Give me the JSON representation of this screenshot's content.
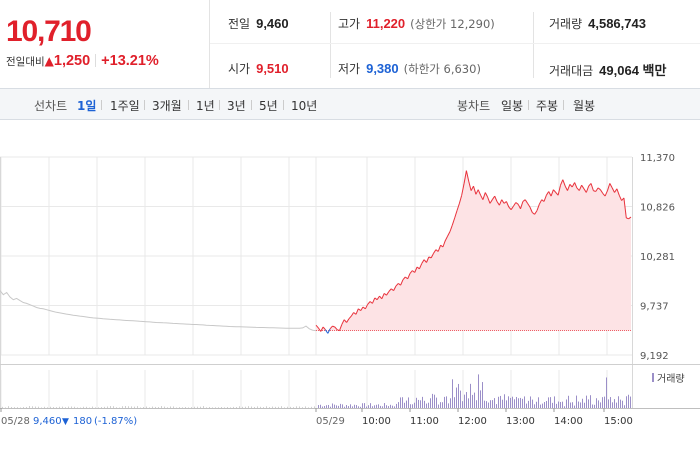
{
  "quote": {
    "price": "10,710",
    "change_label": "전일대비",
    "change_arrow": "▲",
    "change_value": "1,250",
    "change_pct": "+13.21%",
    "prev_close_label": "전일",
    "prev_close": "9,460",
    "open_label": "시가",
    "open": "9,510",
    "high_label": "고가",
    "high": "11,220",
    "upper_limit": "(상한가 12,290)",
    "low_label": "저가",
    "low": "9,380",
    "lower_limit": "(하한가 6,630)",
    "volume_label": "거래량",
    "volume": "4,586,743",
    "amount_label": "거래대금",
    "amount": "49,064 백만"
  },
  "tabs": {
    "line_label": "선차트",
    "line_periods": [
      "1일",
      "1주일",
      "3개월",
      "1년",
      "3년",
      "5년",
      "10년"
    ],
    "active_period": "1일",
    "candle_label": "봉차트",
    "candle_periods": [
      "일봉",
      "주봉",
      "월봉"
    ]
  },
  "chart_data": {
    "type": "line",
    "y_ticks": [
      "11,370",
      "10,826",
      "10,281",
      "9,737",
      "9,192"
    ],
    "ylim": [
      9192,
      11370
    ],
    "base_price": 9460,
    "x_tick_labels": [
      "05/28",
      "05/29",
      "10:00",
      "11:00",
      "12:00",
      "13:00",
      "14:00",
      "15:00"
    ],
    "prev_day_info": {
      "date": "05/28",
      "close": "9,460",
      "arrow": "▼",
      "change": "180",
      "change_pct": "(-1.87%)"
    },
    "volume_legend": "거래량",
    "colors": {
      "up": "#e8323c",
      "down": "#1d62d5",
      "prev_day": "#c8c8c8",
      "fill": "#fde3e5",
      "volume": "#9b8fc8",
      "grid": "#e9e9e9"
    },
    "prev_day_series": [
      [
        0,
        9900
      ],
      [
        1,
        9855
      ],
      [
        2,
        9880
      ],
      [
        3,
        9830
      ],
      [
        4,
        9800
      ],
      [
        5,
        9815
      ],
      [
        6,
        9790
      ],
      [
        7,
        9770
      ],
      [
        8,
        9760
      ],
      [
        9,
        9745
      ],
      [
        10,
        9730
      ],
      [
        11,
        9715
      ],
      [
        12,
        9705
      ],
      [
        13,
        9700
      ],
      [
        14,
        9690
      ],
      [
        15,
        9680
      ],
      [
        16,
        9670
      ],
      [
        17,
        9662
      ],
      [
        18,
        9655
      ],
      [
        19,
        9648
      ],
      [
        20,
        9642
      ],
      [
        21,
        9636
      ],
      [
        22,
        9630
      ],
      [
        23,
        9625
      ],
      [
        24,
        9620
      ],
      [
        25,
        9615
      ],
      [
        26,
        9610
      ],
      [
        27,
        9605
      ],
      [
        28,
        9600
      ],
      [
        29,
        9598
      ],
      [
        30,
        9595
      ],
      [
        31,
        9590
      ],
      [
        32,
        9588
      ],
      [
        33,
        9585
      ],
      [
        34,
        9582
      ],
      [
        35,
        9580
      ],
      [
        36,
        9578
      ],
      [
        37,
        9575
      ],
      [
        38,
        9572
      ],
      [
        39,
        9570
      ],
      [
        40,
        9568
      ],
      [
        41,
        9566
      ],
      [
        42,
        9563
      ],
      [
        43,
        9560
      ],
      [
        44,
        9558
      ],
      [
        45,
        9556
      ],
      [
        46,
        9553
      ],
      [
        47,
        9550
      ],
      [
        48,
        9548
      ],
      [
        49,
        9546
      ],
      [
        50,
        9545
      ],
      [
        51,
        9543
      ],
      [
        52,
        9540
      ],
      [
        53,
        9538
      ],
      [
        54,
        9536
      ],
      [
        55,
        9534
      ],
      [
        56,
        9532
      ],
      [
        57,
        9530
      ],
      [
        58,
        9528
      ],
      [
        59,
        9527
      ],
      [
        60,
        9525
      ],
      [
        61,
        9523
      ],
      [
        62,
        9520
      ],
      [
        63,
        9518
      ],
      [
        64,
        9516
      ],
      [
        65,
        9514
      ],
      [
        66,
        9512
      ],
      [
        67,
        9510
      ],
      [
        68,
        9508
      ],
      [
        69,
        9506
      ],
      [
        70,
        9504
      ],
      [
        71,
        9503
      ],
      [
        72,
        9502
      ],
      [
        73,
        9501
      ],
      [
        74,
        9500
      ],
      [
        75,
        9499
      ],
      [
        76,
        9498
      ],
      [
        77,
        9496
      ],
      [
        78,
        9495
      ],
      [
        79,
        9494
      ],
      [
        80,
        9493
      ],
      [
        81,
        9492
      ],
      [
        82,
        9491
      ],
      [
        83,
        9490
      ],
      [
        84,
        9489
      ],
      [
        85,
        9488
      ],
      [
        86,
        9487
      ],
      [
        87,
        9486
      ],
      [
        88,
        9486
      ],
      [
        89,
        9486
      ],
      [
        90,
        9486
      ],
      [
        91,
        9490
      ],
      [
        92,
        9510
      ],
      [
        93,
        9480
      ],
      [
        94,
        9465
      ],
      [
        95,
        9460
      ]
    ],
    "today_series": [
      [
        0,
        9520
      ],
      [
        1,
        9490
      ],
      [
        2,
        9450
      ],
      [
        3,
        9500
      ],
      [
        4,
        9470
      ],
      [
        5,
        9430
      ],
      [
        6,
        9480
      ],
      [
        7,
        9510
      ],
      [
        8,
        9500
      ],
      [
        9,
        9470
      ],
      [
        10,
        9460
      ],
      [
        11,
        9530
      ],
      [
        12,
        9580
      ],
      [
        13,
        9550
      ],
      [
        14,
        9590
      ],
      [
        15,
        9620
      ],
      [
        16,
        9660
      ],
      [
        17,
        9640
      ],
      [
        18,
        9700
      ],
      [
        19,
        9680
      ],
      [
        20,
        9720
      ],
      [
        21,
        9700
      ],
      [
        22,
        9750
      ],
      [
        23,
        9780
      ],
      [
        24,
        9760
      ],
      [
        25,
        9820
      ],
      [
        26,
        9800
      ],
      [
        27,
        9840
      ],
      [
        28,
        9810
      ],
      [
        29,
        9870
      ],
      [
        30,
        9850
      ],
      [
        31,
        9890
      ],
      [
        32,
        9920
      ],
      [
        33,
        9900
      ],
      [
        34,
        9950
      ],
      [
        35,
        9980
      ],
      [
        36,
        9960
      ],
      [
        37,
        10020
      ],
      [
        38,
        10050
      ],
      [
        39,
        10030
      ],
      [
        40,
        10090
      ],
      [
        41,
        10120
      ],
      [
        42,
        10100
      ],
      [
        43,
        10160
      ],
      [
        44,
        10140
      ],
      [
        45,
        10200
      ],
      [
        46,
        10240
      ],
      [
        47,
        10210
      ],
      [
        48,
        10270
      ],
      [
        49,
        10260
      ],
      [
        50,
        10310
      ],
      [
        51,
        10350
      ],
      [
        52,
        10330
      ],
      [
        53,
        10400
      ],
      [
        54,
        10380
      ],
      [
        55,
        10450
      ],
      [
        56,
        10500
      ],
      [
        57,
        10550
      ],
      [
        58,
        10620
      ],
      [
        59,
        10700
      ],
      [
        60,
        10780
      ],
      [
        61,
        10860
      ],
      [
        62,
        10950
      ],
      [
        63,
        11080
      ],
      [
        64,
        11220
      ],
      [
        65,
        11100
      ],
      [
        66,
        11000
      ],
      [
        67,
        11050
      ],
      [
        68,
        10960
      ],
      [
        69,
        11010
      ],
      [
        70,
        10950
      ],
      [
        71,
        10900
      ],
      [
        72,
        10980
      ],
      [
        73,
        10930
      ],
      [
        74,
        10860
      ],
      [
        75,
        10900
      ],
      [
        76,
        10940
      ],
      [
        77,
        10880
      ],
      [
        78,
        10840
      ],
      [
        79,
        10900
      ],
      [
        80,
        10860
      ],
      [
        81,
        10880
      ],
      [
        82,
        10820
      ],
      [
        83,
        10790
      ],
      [
        84,
        10830
      ],
      [
        85,
        10870
      ],
      [
        86,
        10850
      ],
      [
        87,
        10800
      ],
      [
        88,
        10880
      ],
      [
        89,
        10900
      ],
      [
        90,
        10860
      ],
      [
        91,
        10820
      ],
      [
        92,
        10760
      ],
      [
        93,
        10740
      ],
      [
        94,
        10780
      ],
      [
        95,
        10850
      ],
      [
        96,
        10900
      ],
      [
        97,
        10880
      ],
      [
        98,
        10950
      ],
      [
        99,
        10990
      ],
      [
        100,
        10940
      ],
      [
        101,
        11010
      ],
      [
        102,
        10980
      ],
      [
        103,
        10950
      ],
      [
        104,
        11060
      ],
      [
        105,
        11120
      ],
      [
        106,
        11050
      ],
      [
        107,
        11000
      ],
      [
        108,
        11070
      ],
      [
        109,
        11040
      ],
      [
        110,
        11090
      ],
      [
        111,
        11030
      ],
      [
        112,
        11000
      ],
      [
        113,
        11060
      ],
      [
        114,
        11020
      ],
      [
        115,
        10980
      ],
      [
        116,
        11050
      ],
      [
        117,
        11080
      ],
      [
        118,
        11000
      ],
      [
        119,
        10990
      ],
      [
        120,
        11030
      ],
      [
        121,
        11010
      ],
      [
        122,
        10970
      ],
      [
        123,
        10940
      ],
      [
        124,
        11000
      ],
      [
        125,
        11080
      ],
      [
        126,
        11030
      ],
      [
        127,
        10980
      ],
      [
        128,
        11020
      ],
      [
        129,
        10950
      ],
      [
        130,
        10890
      ],
      [
        131,
        10920
      ],
      [
        132,
        10700
      ],
      [
        133,
        10690
      ],
      [
        134,
        10710
      ]
    ]
  }
}
